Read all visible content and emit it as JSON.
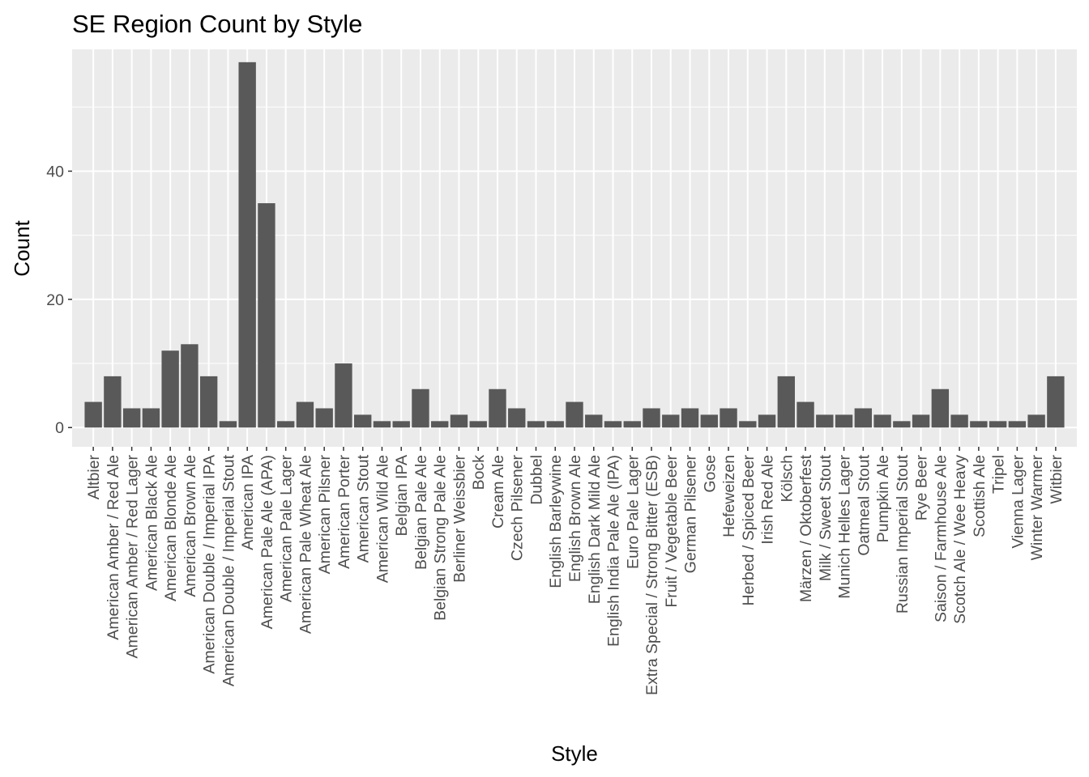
{
  "chart_data": {
    "type": "bar",
    "title": "SE Region Count by Style",
    "xlabel": "Style",
    "ylabel": "Count",
    "ylim": [
      -3,
      59
    ],
    "yticks": [
      0,
      20,
      40
    ],
    "grid": true,
    "bar_color": "#595959",
    "panel_color": "#ebebeb",
    "categories": [
      "Altbier",
      "American Amber / Red Ale",
      "American Amber / Red Lager",
      "American Black Ale",
      "American Blonde Ale",
      "American Brown Ale",
      "American Double / Imperial IPA",
      "American Double / Imperial Stout",
      "American IPA",
      "American Pale Ale (APA)",
      "American Pale Lager",
      "American Pale Wheat Ale",
      "American Pilsner",
      "American Porter",
      "American Stout",
      "American Wild Ale",
      "Belgian IPA",
      "Belgian Pale Ale",
      "Belgian Strong Pale Ale",
      "Berliner Weissbier",
      "Bock",
      "Cream Ale",
      "Czech Pilsener",
      "Dubbel",
      "English Barleywine",
      "English Brown Ale",
      "English Dark Mild Ale",
      "English India Pale Ale (IPA)",
      "Euro Pale Lager",
      "Extra Special / Strong Bitter (ESB)",
      "Fruit / Vegetable Beer",
      "German Pilsener",
      "Gose",
      "Hefeweizen",
      "Herbed / Spiced Beer",
      "Irish Red Ale",
      "Kölsch",
      "Märzen / Oktoberfest",
      "Milk / Sweet Stout",
      "Munich Helles Lager",
      "Oatmeal Stout",
      "Pumpkin Ale",
      "Russian Imperial Stout",
      "Rye Beer",
      "Saison / Farmhouse Ale",
      "Scotch Ale / Wee Heavy",
      "Scottish Ale",
      "Tripel",
      "Vienna Lager",
      "Winter Warmer",
      "Witbier"
    ],
    "values": [
      4,
      8,
      3,
      3,
      12,
      13,
      8,
      1,
      57,
      35,
      1,
      4,
      3,
      10,
      2,
      1,
      1,
      6,
      1,
      2,
      1,
      6,
      3,
      1,
      1,
      4,
      2,
      1,
      1,
      3,
      2,
      3,
      2,
      3,
      1,
      2,
      8,
      4,
      2,
      2,
      3,
      2,
      1,
      2,
      6,
      2,
      1,
      1,
      1,
      2,
      8
    ]
  }
}
